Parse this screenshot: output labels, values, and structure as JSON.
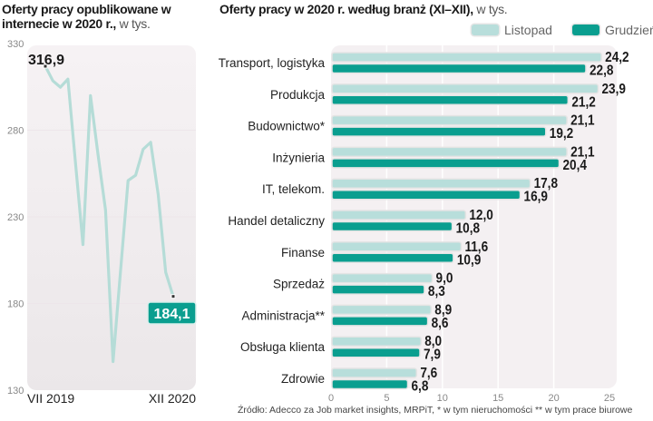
{
  "chart_data": [
    {
      "type": "line",
      "title": "Oferty pracy opublikowane w internecie w 2020 r.,",
      "unit": "w tys.",
      "ylim": [
        130,
        330
      ],
      "yticks": [
        "330",
        "280",
        "230",
        "180",
        "130"
      ],
      "x_start_label": "VII 2019",
      "x_end_label": "XII 2020",
      "values": [
        316.9,
        308.5,
        304.8,
        309.5,
        261.5,
        214,
        300,
        266,
        234,
        146.5,
        199,
        251,
        254,
        269,
        273,
        243,
        198,
        184.1
      ],
      "first_label": "316,9",
      "last_label": "184,1",
      "line_color": "#b5dcd7",
      "badge_color": "#0a9e8f"
    },
    {
      "type": "bar",
      "orientation": "horizontal",
      "title": "Oferty pracy w 2020 r. według branż (XI–XII),",
      "unit": "w tys.",
      "xlim": [
        0,
        25
      ],
      "xticks": [
        "0",
        "5",
        "10",
        "15",
        "20",
        "25"
      ],
      "categories": [
        "Transport, logistyka",
        "Produkcja",
        "Budownictwo*",
        "Inżynieria",
        "IT, telekom.",
        "Handel detaliczny",
        "Finanse",
        "Sprzedaż",
        "Administracja**",
        "Obsługa klienta",
        "Zdrowie"
      ],
      "series": [
        {
          "name": "Listopad",
          "color": "#b8dedb",
          "values": [
            24.2,
            23.9,
            21.1,
            21.1,
            17.8,
            12.0,
            11.6,
            9.0,
            8.9,
            8.0,
            7.6
          ],
          "labels": [
            "24,2",
            "23,9",
            "21,1",
            "21,1",
            "17,8",
            "12,0",
            "11,6",
            "9,0",
            "8,9",
            "8,0",
            "7,6"
          ]
        },
        {
          "name": "Grudzień",
          "color": "#0a9e8f",
          "values": [
            22.8,
            21.2,
            19.2,
            20.4,
            16.9,
            10.8,
            10.9,
            8.3,
            8.6,
            7.9,
            6.8
          ],
          "labels": [
            "22,8",
            "21,2",
            "19,2",
            "20,4",
            "16,9",
            "10,8",
            "10,9",
            "8,3",
            "8,6",
            "7,9",
            "6,8"
          ]
        }
      ],
      "legend_position": "top-right"
    }
  ],
  "source": "Źródło:  Adecco za Job market insights, MRPiT,  * w tym nieruchomości ** w tym prace biurowe"
}
